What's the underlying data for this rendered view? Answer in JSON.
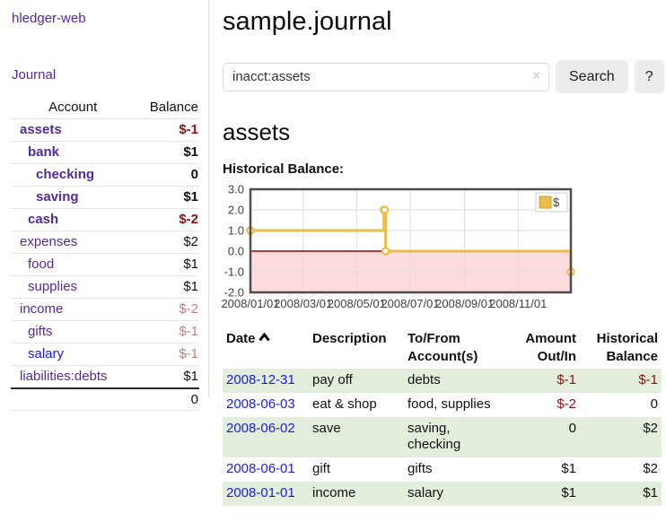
{
  "brand": {
    "label": "hledger-web"
  },
  "nav": {
    "journal_label": "Journal"
  },
  "sidebar": {
    "headers": [
      "Account",
      "Balance"
    ],
    "rows": [
      {
        "account": "assets",
        "balance": "$-1",
        "depth": 1,
        "bold": true,
        "balance_class": "neg-strong",
        "link_blue": false
      },
      {
        "account": "bank",
        "balance": "$1",
        "depth": 2,
        "bold": true,
        "balance_class": "",
        "link_blue": false
      },
      {
        "account": "checking",
        "balance": "0",
        "depth": 3,
        "bold": true,
        "balance_class": "",
        "link_blue": false
      },
      {
        "account": "saving",
        "balance": "$1",
        "depth": 3,
        "bold": true,
        "balance_class": "",
        "link_blue": false
      },
      {
        "account": "cash",
        "balance": "$-2",
        "depth": 2,
        "bold": true,
        "balance_class": "neg-strong",
        "link_blue": false
      },
      {
        "account": "expenses",
        "balance": "$2",
        "depth": 1,
        "bold": false,
        "balance_class": "",
        "link_blue": false
      },
      {
        "account": "food",
        "balance": "$1",
        "depth": 2,
        "bold": false,
        "balance_class": "",
        "link_blue": false
      },
      {
        "account": "supplies",
        "balance": "$1",
        "depth": 2,
        "bold": false,
        "balance_class": "",
        "link_blue": false
      },
      {
        "account": "income",
        "balance": "$-2",
        "depth": 1,
        "bold": false,
        "balance_class": "neg-soft",
        "link_blue": false
      },
      {
        "account": "gifts",
        "balance": "$-1",
        "depth": 2,
        "bold": false,
        "balance_class": "neg-soft",
        "link_blue": false
      },
      {
        "account": "salary",
        "balance": "$-1",
        "depth": 2,
        "bold": false,
        "balance_class": "neg-soft",
        "link_blue": true
      },
      {
        "account": "liabilities:debts",
        "balance": "$1",
        "depth": 1,
        "bold": false,
        "balance_class": "",
        "link_blue": false
      }
    ],
    "total": "0"
  },
  "header": {
    "title": "sample.journal"
  },
  "search": {
    "value": "inacct:assets",
    "clear_icon": "×",
    "button_label": "Search",
    "help_label": "?"
  },
  "account_page": {
    "title": "assets",
    "chart_heading": "Historical Balance:"
  },
  "chart_data": {
    "type": "line",
    "mode": "steps",
    "title": "Historical Balance",
    "legend": [
      {
        "label": "$",
        "color": "#e9bd4a"
      }
    ],
    "legend_position": "top-right",
    "series": [
      {
        "name": "$",
        "points": [
          [
            "2008-01-01",
            1
          ],
          [
            "2008-06-01",
            2
          ],
          [
            "2008-06-02",
            2
          ],
          [
            "2008-06-03",
            0
          ],
          [
            "2008-12-31",
            -1
          ]
        ]
      }
    ],
    "xlim": [
      "2008/01/01",
      "2008/12/31"
    ],
    "ylim": [
      -2,
      3
    ],
    "x_ticks": [
      "2008/01/01",
      "2008/03/01",
      "2008/05/01",
      "2008/07/01",
      "2008/09/01",
      "2008/11/01"
    ],
    "y_ticks": [
      3,
      2,
      1,
      0,
      -1,
      -2
    ],
    "grid": true,
    "colors": {
      "line": "#e9bd4a",
      "marker_fill": "#ffffff",
      "negative_region": "#fcdcdc",
      "zero_line": "#990000",
      "gridline": "#dedede",
      "border": "#4d4d4d",
      "legend_swatch_border": "#c9a22c"
    }
  },
  "register": {
    "headers": {
      "date": "Date",
      "description": "Description",
      "accounts": "To/From Account(s)",
      "amount": "Amount Out/In",
      "balance": "Historical Balance"
    },
    "rows": [
      {
        "date": "2008-12-31",
        "description": "pay off",
        "accounts": "debts",
        "amount": "$-1",
        "amount_negative": true,
        "balance": "$-1",
        "balance_negative": true
      },
      {
        "date": "2008-06-03",
        "description": "eat & shop",
        "accounts": "food, supplies",
        "amount": "$-2",
        "amount_negative": true,
        "balance": "0",
        "balance_negative": false
      },
      {
        "date": "2008-06-02",
        "description": "save",
        "accounts": "saving, checking",
        "amount": "0",
        "amount_negative": false,
        "balance": "$2",
        "balance_negative": false
      },
      {
        "date": "2008-06-01",
        "description": "gift",
        "accounts": "gifts",
        "amount": "$1",
        "amount_negative": false,
        "balance": "$2",
        "balance_negative": false
      },
      {
        "date": "2008-01-01",
        "description": "income",
        "accounts": "salary",
        "amount": "$1",
        "amount_negative": false,
        "balance": "$1",
        "balance_negative": false
      }
    ]
  },
  "colors": {
    "accent_purple": "#542a97",
    "link_blue": "#1a1ae8",
    "negative_strong": "#8b1212",
    "negative_soft": "#c07f7f",
    "row_green": "#e3efdc"
  }
}
